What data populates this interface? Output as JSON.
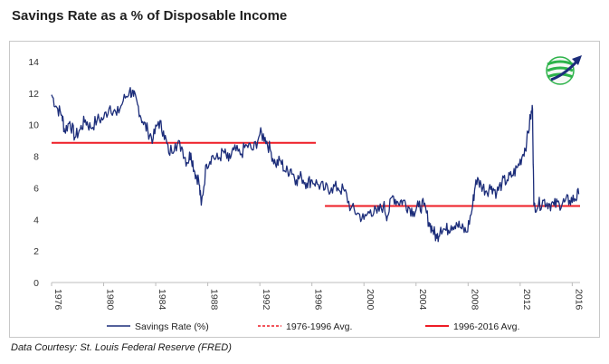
{
  "title": "Savings Rate as a % of Disposable Income",
  "caption": "Data Courtesy: St. Louis Federal Reserve (FRED)",
  "logo": "globe-arrow-logo",
  "colors": {
    "series": "#1c2d7a",
    "avg": "#ee1c25",
    "accent": "#2db34a"
  },
  "chart_data": {
    "type": "line",
    "title": "Savings Rate as a % of Disposable Income",
    "xlabel": "",
    "ylabel": "",
    "xlim": [
      1976,
      2016.6
    ],
    "ylim": [
      0,
      14
    ],
    "yticks": [
      "0",
      "2",
      "4",
      "6",
      "8",
      "10",
      "12",
      "14"
    ],
    "xticks": [
      "1976",
      "1980",
      "1984",
      "1988",
      "1992",
      "1996",
      "2000",
      "2004",
      "2008",
      "2012",
      "2016"
    ],
    "grid": false,
    "legend": "bottom",
    "legend_items": [
      {
        "name": "Savings Rate (%)",
        "style": "solid-thin",
        "color": "#1c2d7a"
      },
      {
        "name": "1976-1996 Avg.",
        "style": "dashed",
        "color": "#ee1c25"
      },
      {
        "name": "1996-2016 Avg.",
        "style": "solid-thick",
        "color": "#ee1c25"
      }
    ],
    "series": [
      {
        "name": "Savings Rate (%)",
        "x": [
          1976.0,
          1976.4,
          1976.8,
          1977.0,
          1977.4,
          1977.8,
          1978.2,
          1978.6,
          1979.0,
          1979.5,
          1980.0,
          1980.5,
          1981.0,
          1981.5,
          1982.0,
          1982.3,
          1982.6,
          1983.0,
          1983.4,
          1983.8,
          1984.2,
          1984.6,
          1985.0,
          1985.5,
          1986.0,
          1986.4,
          1986.7,
          1987.0,
          1987.3,
          1987.5,
          1987.9,
          1988.3,
          1988.8,
          1989.2,
          1989.6,
          1990.0,
          1990.5,
          1991.0,
          1991.5,
          1992.0,
          1992.4,
          1992.8,
          1993.2,
          1993.6,
          1994.0,
          1994.4,
          1994.8,
          1995.2,
          1995.6,
          1996.0,
          1996.5,
          1997.0,
          1997.5,
          1998.0,
          1998.5,
          1999.0,
          1999.5,
          2000.0,
          2000.5,
          2001.0,
          2001.5,
          2001.8,
          2002.2,
          2002.6,
          2003.0,
          2003.4,
          2003.8,
          2004.2,
          2004.6,
          2005.0,
          2005.3,
          2005.6,
          2005.9,
          2006.3,
          2006.7,
          2007.1,
          2007.5,
          2007.9,
          2008.3,
          2008.6,
          2009.0,
          2009.4,
          2009.8,
          2010.2,
          2010.6,
          2011.0,
          2011.4,
          2011.8,
          2012.2,
          2012.5,
          2012.8,
          2012.95,
          2013.05,
          2013.4,
          2013.8,
          2014.2,
          2014.6,
          2015.0,
          2015.4,
          2015.8,
          2016.2,
          2016.5
        ],
        "y": [
          11.9,
          11.1,
          10.6,
          9.6,
          10.2,
          9.2,
          9.7,
          10.3,
          9.8,
          10.3,
          10.4,
          11.2,
          10.6,
          11.5,
          12.2,
          11.8,
          11.3,
          10.2,
          9.6,
          9.1,
          10.2,
          9.6,
          8.2,
          8.8,
          8.6,
          7.6,
          8.2,
          7.0,
          6.5,
          4.9,
          7.5,
          8.0,
          7.8,
          8.3,
          7.7,
          8.4,
          8.1,
          8.7,
          8.4,
          9.4,
          9.2,
          8.4,
          7.5,
          7.7,
          7.0,
          7.2,
          6.5,
          6.7,
          6.3,
          6.5,
          6.2,
          5.9,
          6.0,
          6.0,
          5.8,
          4.7,
          4.4,
          4.0,
          4.6,
          4.4,
          4.9,
          4.2,
          5.5,
          5.1,
          5.2,
          4.8,
          4.5,
          4.8,
          4.9,
          3.8,
          3.3,
          2.8,
          3.5,
          3.3,
          3.6,
          3.8,
          3.4,
          3.2,
          4.6,
          6.5,
          6.2,
          5.8,
          6.1,
          5.7,
          6.3,
          6.5,
          6.8,
          7.3,
          8.1,
          8.9,
          10.5,
          11.0,
          4.9,
          4.9,
          5.2,
          5.0,
          4.9,
          5.0,
          5.1,
          5.2,
          5.3,
          5.6
        ]
      },
      {
        "name": "1976-1996 Avg.",
        "x": [
          1976.0,
          1996.3
        ],
        "y": [
          8.85,
          8.85
        ]
      },
      {
        "name": "1996-2016 Avg.",
        "x": [
          1997.0,
          2016.6
        ],
        "y": [
          4.85,
          4.85
        ]
      }
    ]
  }
}
